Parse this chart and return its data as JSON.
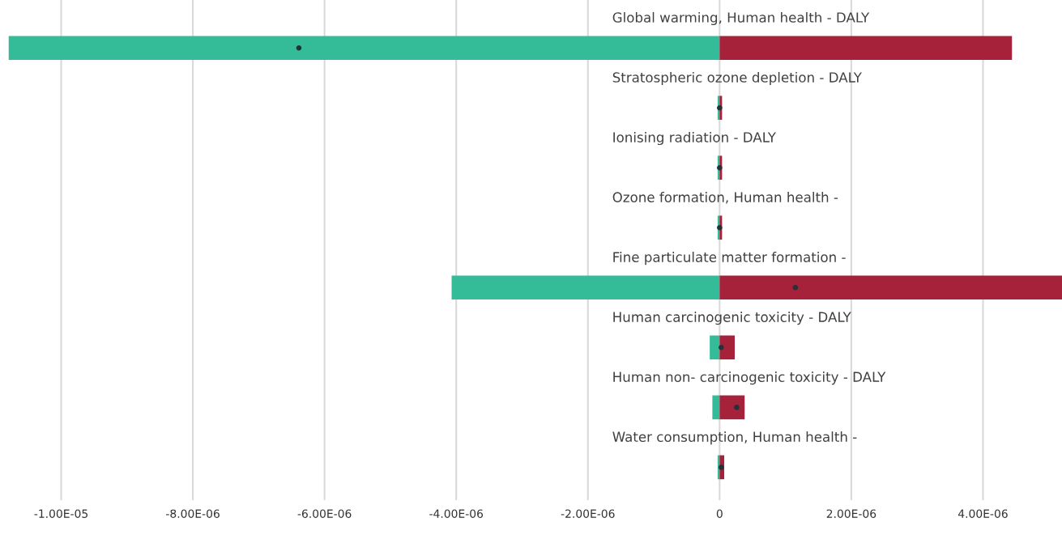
{
  "chart_data": {
    "type": "bar",
    "orientation": "horizontal",
    "stacked": true,
    "categories": [
      "Global warming, Human health - DALY",
      "Stratospheric ozone depletion - DALY",
      "Ionising radiation - DALY",
      "Ozone formation, Human health -",
      "Fine particulate matter formation -",
      "Human carcinogenic toxicity - DALY",
      "Human non- carcinogenic toxicity - DALY",
      "Water consumption, Human health -"
    ],
    "series": [
      {
        "color": "#34bc98",
        "values": [
          -1.08e-05,
          -3e-08,
          -3e-08,
          -3e-08,
          -4.07e-06,
          -1.5e-07,
          -1.1e-07,
          -3e-08
        ]
      },
      {
        "color": "#a6213a",
        "values": [
          4.44e-06,
          3.7e-08,
          3.7e-08,
          3.7e-08,
          5.2e-06,
          2.3e-07,
          3.8e-07,
          7e-08
        ]
      },
      {
        "type": "scatter",
        "color": "#263238",
        "values": [
          -6.39e-06,
          0,
          0,
          0,
          1.15e-06,
          2.5e-08,
          2.6e-07,
          2.5e-08
        ]
      }
    ],
    "xlim": [
      -1.08e-05,
      5.2e-06
    ],
    "xticks": [
      {
        "value": -1e-05,
        "label": "-1.00E-05"
      },
      {
        "value": -8e-06,
        "label": "-8.00E-06"
      },
      {
        "value": -6e-06,
        "label": "-6.00E-06"
      },
      {
        "value": -4e-06,
        "label": "-4.00E-06"
      },
      {
        "value": -2e-06,
        "label": "-2.00E-06"
      },
      0,
      {
        "value": 2e-06,
        "label": "2.00E-06"
      },
      {
        "value": 4e-06,
        "label": "4.00E-06"
      }
    ],
    "grid": "x"
  }
}
